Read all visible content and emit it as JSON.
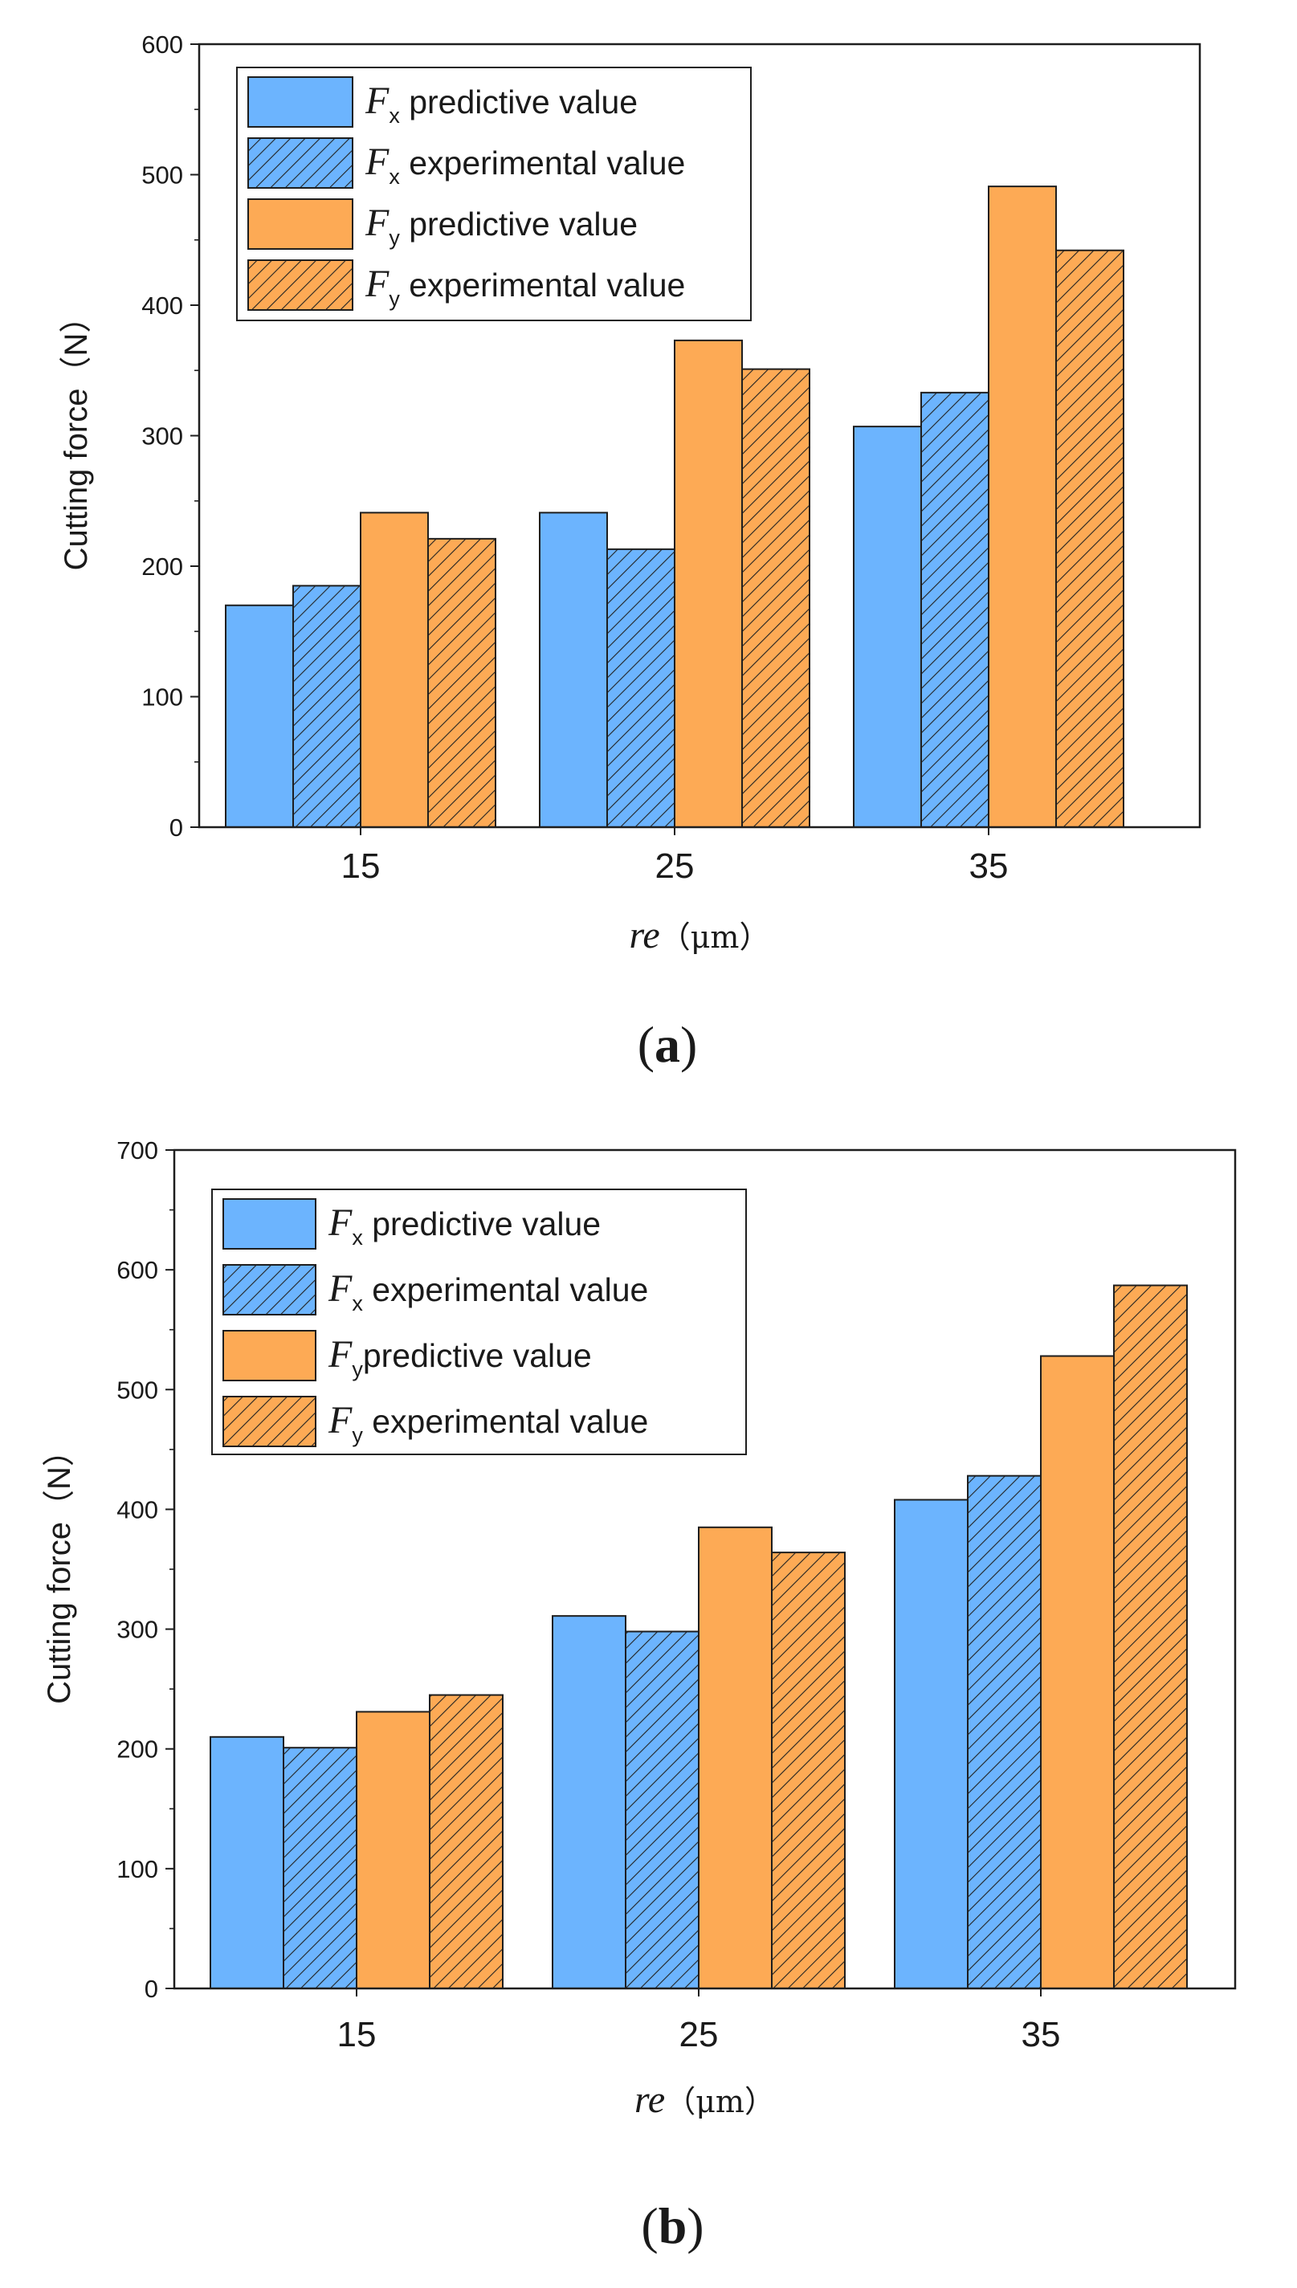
{
  "chart_data": [
    {
      "type": "bar",
      "panel": "a",
      "caption": "(a)",
      "caption_letter": "a",
      "categories": [
        "15",
        "25",
        "35"
      ],
      "ylim": [
        0,
        600
      ],
      "yticks": [
        0,
        100,
        200,
        300,
        400,
        500,
        600
      ],
      "ylabel": "Cutting force（N）",
      "xlabel": {
        "italic": "re",
        "unit": "（μm）"
      },
      "legend_position": "top-left",
      "grid": false,
      "series": [
        {
          "name": "Fx predictive value",
          "symbol": "F",
          "sub": "x",
          "text": " predictive value",
          "hatch": false,
          "color": "#6cb4fe",
          "values": [
            170,
            241,
            307
          ]
        },
        {
          "name": "Fx experimental value",
          "symbol": "F",
          "sub": "x",
          "text": " experimental value",
          "hatch": true,
          "color": "#6cb4fe",
          "values": [
            185,
            213,
            333
          ]
        },
        {
          "name": "Fy predictive value",
          "symbol": "F",
          "sub": "y",
          "text": " predictive value",
          "hatch": false,
          "color": "#fdaa55",
          "values": [
            241,
            373,
            491
          ]
        },
        {
          "name": "Fy experimental value",
          "symbol": "F",
          "sub": "y",
          "text": " experimental value",
          "hatch": true,
          "color": "#fdaa55",
          "values": [
            221,
            351,
            442
          ]
        }
      ]
    },
    {
      "type": "bar",
      "panel": "b",
      "caption": "(b)",
      "caption_letter": "b",
      "categories": [
        "15",
        "25",
        "35"
      ],
      "ylim": [
        0,
        700
      ],
      "yticks": [
        0,
        100,
        200,
        300,
        400,
        500,
        600,
        700
      ],
      "ylabel": "Cutting force（N）",
      "xlabel": {
        "italic": "re",
        "unit": "（μm）"
      },
      "legend_position": "top-left",
      "grid": false,
      "series": [
        {
          "name": "Fx predictive value",
          "symbol": "F",
          "sub": "x",
          "text": " predictive value",
          "hatch": false,
          "color": "#6cb4fe",
          "values": [
            210,
            311,
            408
          ]
        },
        {
          "name": "Fx experimental value",
          "symbol": "F",
          "sub": "x",
          "text": " experimental value",
          "hatch": true,
          "color": "#6cb4fe",
          "values": [
            201,
            298,
            428
          ]
        },
        {
          "name": "Fy predictive  value",
          "symbol": "F",
          "sub": "y",
          "text": "predictive  value",
          "hatch": false,
          "color": "#fdaa55",
          "values": [
            231,
            385,
            528
          ]
        },
        {
          "name": "Fy experimental value",
          "symbol": "F",
          "sub": "y",
          "text": " experimental value",
          "hatch": true,
          "color": "#fdaa55",
          "values": [
            245,
            364,
            587
          ]
        }
      ]
    }
  ]
}
